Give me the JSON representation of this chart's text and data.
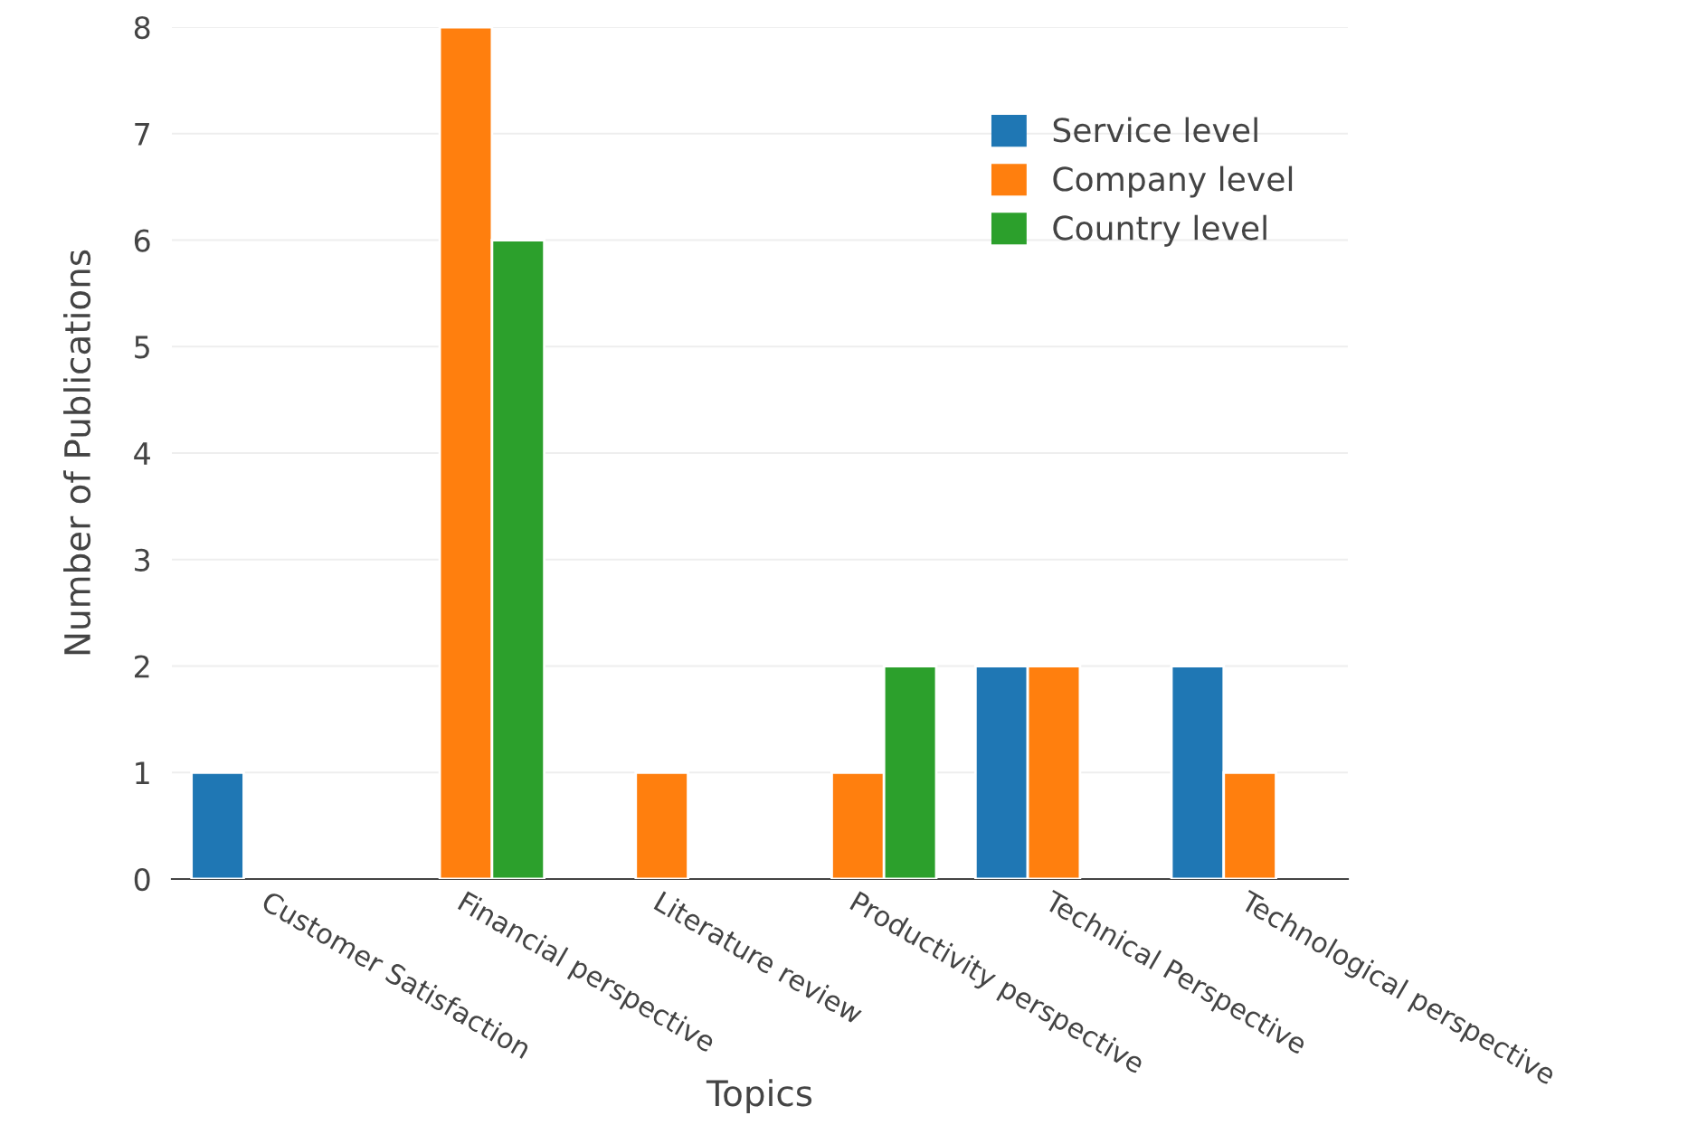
{
  "chart_data": {
    "type": "bar",
    "xlabel": "Topics",
    "ylabel": "Number of Publications",
    "categories": [
      "Customer Satisfaction",
      "Financial perspective",
      "Literature review",
      "Productivity perspective",
      "Technical Perspective",
      "Technological perspective"
    ],
    "series": [
      {
        "name": "Service level",
        "color": "#1f77b4",
        "values": [
          1,
          null,
          null,
          null,
          2,
          2
        ]
      },
      {
        "name": "Company level",
        "color": "#ff7f0e",
        "values": [
          null,
          8,
          1,
          1,
          2,
          1
        ]
      },
      {
        "name": "Country level",
        "color": "#2ca02c",
        "values": [
          null,
          6,
          null,
          2,
          null,
          null
        ]
      }
    ],
    "ylim": [
      0,
      8
    ],
    "yticks": [
      0,
      1,
      2,
      3,
      4,
      5,
      6,
      7,
      8
    ],
    "grid": "y",
    "legend": "top right"
  }
}
